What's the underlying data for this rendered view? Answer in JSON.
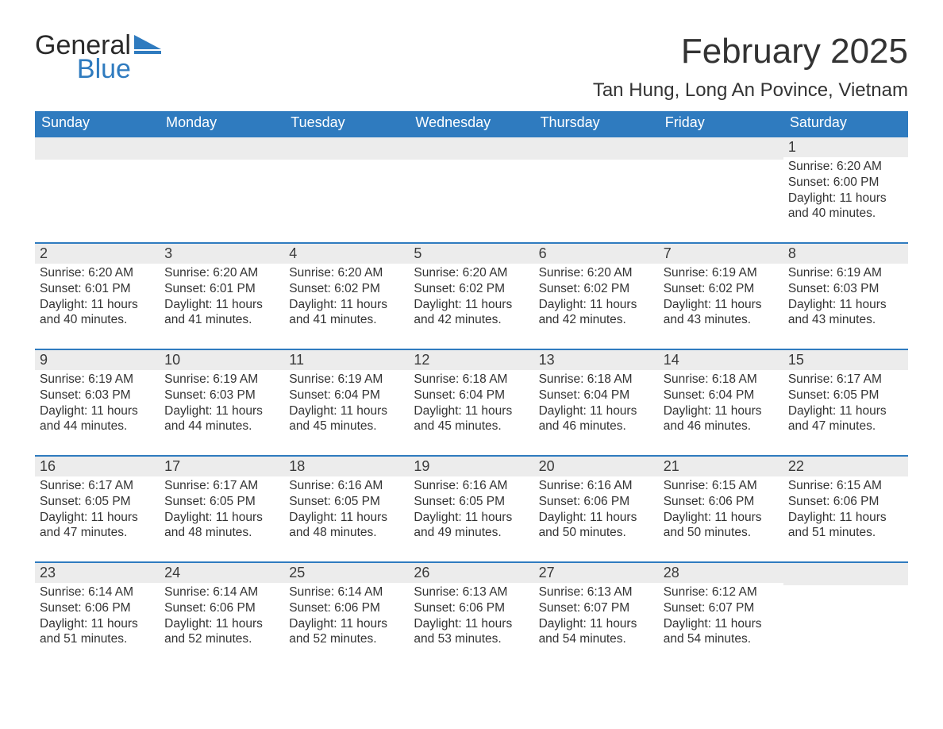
{
  "logo": {
    "word1": "General",
    "word2": "Blue"
  },
  "title": "February 2025",
  "location": "Tan Hung, Long An Povince, Vietnam",
  "colors": {
    "header_blue": "#2f7bbf",
    "daynum_bg": "#ececec",
    "text": "#333333",
    "white": "#ffffff"
  },
  "weekdays": [
    "Sunday",
    "Monday",
    "Tuesday",
    "Wednesday",
    "Thursday",
    "Friday",
    "Saturday"
  ],
  "weeks": [
    [
      {
        "empty": true
      },
      {
        "empty": true
      },
      {
        "empty": true
      },
      {
        "empty": true
      },
      {
        "empty": true
      },
      {
        "empty": true
      },
      {
        "n": "1",
        "sunrise": "Sunrise: 6:20 AM",
        "sunset": "Sunset: 6:00 PM",
        "day1": "Daylight: 11 hours",
        "day2": "and 40 minutes."
      }
    ],
    [
      {
        "n": "2",
        "sunrise": "Sunrise: 6:20 AM",
        "sunset": "Sunset: 6:01 PM",
        "day1": "Daylight: 11 hours",
        "day2": "and 40 minutes."
      },
      {
        "n": "3",
        "sunrise": "Sunrise: 6:20 AM",
        "sunset": "Sunset: 6:01 PM",
        "day1": "Daylight: 11 hours",
        "day2": "and 41 minutes."
      },
      {
        "n": "4",
        "sunrise": "Sunrise: 6:20 AM",
        "sunset": "Sunset: 6:02 PM",
        "day1": "Daylight: 11 hours",
        "day2": "and 41 minutes."
      },
      {
        "n": "5",
        "sunrise": "Sunrise: 6:20 AM",
        "sunset": "Sunset: 6:02 PM",
        "day1": "Daylight: 11 hours",
        "day2": "and 42 minutes."
      },
      {
        "n": "6",
        "sunrise": "Sunrise: 6:20 AM",
        "sunset": "Sunset: 6:02 PM",
        "day1": "Daylight: 11 hours",
        "day2": "and 42 minutes."
      },
      {
        "n": "7",
        "sunrise": "Sunrise: 6:19 AM",
        "sunset": "Sunset: 6:02 PM",
        "day1": "Daylight: 11 hours",
        "day2": "and 43 minutes."
      },
      {
        "n": "8",
        "sunrise": "Sunrise: 6:19 AM",
        "sunset": "Sunset: 6:03 PM",
        "day1": "Daylight: 11 hours",
        "day2": "and 43 minutes."
      }
    ],
    [
      {
        "n": "9",
        "sunrise": "Sunrise: 6:19 AM",
        "sunset": "Sunset: 6:03 PM",
        "day1": "Daylight: 11 hours",
        "day2": "and 44 minutes."
      },
      {
        "n": "10",
        "sunrise": "Sunrise: 6:19 AM",
        "sunset": "Sunset: 6:03 PM",
        "day1": "Daylight: 11 hours",
        "day2": "and 44 minutes."
      },
      {
        "n": "11",
        "sunrise": "Sunrise: 6:19 AM",
        "sunset": "Sunset: 6:04 PM",
        "day1": "Daylight: 11 hours",
        "day2": "and 45 minutes."
      },
      {
        "n": "12",
        "sunrise": "Sunrise: 6:18 AM",
        "sunset": "Sunset: 6:04 PM",
        "day1": "Daylight: 11 hours",
        "day2": "and 45 minutes."
      },
      {
        "n": "13",
        "sunrise": "Sunrise: 6:18 AM",
        "sunset": "Sunset: 6:04 PM",
        "day1": "Daylight: 11 hours",
        "day2": "and 46 minutes."
      },
      {
        "n": "14",
        "sunrise": "Sunrise: 6:18 AM",
        "sunset": "Sunset: 6:04 PM",
        "day1": "Daylight: 11 hours",
        "day2": "and 46 minutes."
      },
      {
        "n": "15",
        "sunrise": "Sunrise: 6:17 AM",
        "sunset": "Sunset: 6:05 PM",
        "day1": "Daylight: 11 hours",
        "day2": "and 47 minutes."
      }
    ],
    [
      {
        "n": "16",
        "sunrise": "Sunrise: 6:17 AM",
        "sunset": "Sunset: 6:05 PM",
        "day1": "Daylight: 11 hours",
        "day2": "and 47 minutes."
      },
      {
        "n": "17",
        "sunrise": "Sunrise: 6:17 AM",
        "sunset": "Sunset: 6:05 PM",
        "day1": "Daylight: 11 hours",
        "day2": "and 48 minutes."
      },
      {
        "n": "18",
        "sunrise": "Sunrise: 6:16 AM",
        "sunset": "Sunset: 6:05 PM",
        "day1": "Daylight: 11 hours",
        "day2": "and 48 minutes."
      },
      {
        "n": "19",
        "sunrise": "Sunrise: 6:16 AM",
        "sunset": "Sunset: 6:05 PM",
        "day1": "Daylight: 11 hours",
        "day2": "and 49 minutes."
      },
      {
        "n": "20",
        "sunrise": "Sunrise: 6:16 AM",
        "sunset": "Sunset: 6:06 PM",
        "day1": "Daylight: 11 hours",
        "day2": "and 50 minutes."
      },
      {
        "n": "21",
        "sunrise": "Sunrise: 6:15 AM",
        "sunset": "Sunset: 6:06 PM",
        "day1": "Daylight: 11 hours",
        "day2": "and 50 minutes."
      },
      {
        "n": "22",
        "sunrise": "Sunrise: 6:15 AM",
        "sunset": "Sunset: 6:06 PM",
        "day1": "Daylight: 11 hours",
        "day2": "and 51 minutes."
      }
    ],
    [
      {
        "n": "23",
        "sunrise": "Sunrise: 6:14 AM",
        "sunset": "Sunset: 6:06 PM",
        "day1": "Daylight: 11 hours",
        "day2": "and 51 minutes."
      },
      {
        "n": "24",
        "sunrise": "Sunrise: 6:14 AM",
        "sunset": "Sunset: 6:06 PM",
        "day1": "Daylight: 11 hours",
        "day2": "and 52 minutes."
      },
      {
        "n": "25",
        "sunrise": "Sunrise: 6:14 AM",
        "sunset": "Sunset: 6:06 PM",
        "day1": "Daylight: 11 hours",
        "day2": "and 52 minutes."
      },
      {
        "n": "26",
        "sunrise": "Sunrise: 6:13 AM",
        "sunset": "Sunset: 6:06 PM",
        "day1": "Daylight: 11 hours",
        "day2": "and 53 minutes."
      },
      {
        "n": "27",
        "sunrise": "Sunrise: 6:13 AM",
        "sunset": "Sunset: 6:07 PM",
        "day1": "Daylight: 11 hours",
        "day2": "and 54 minutes."
      },
      {
        "n": "28",
        "sunrise": "Sunrise: 6:12 AM",
        "sunset": "Sunset: 6:07 PM",
        "day1": "Daylight: 11 hours",
        "day2": "and 54 minutes."
      },
      {
        "empty": true
      }
    ]
  ]
}
